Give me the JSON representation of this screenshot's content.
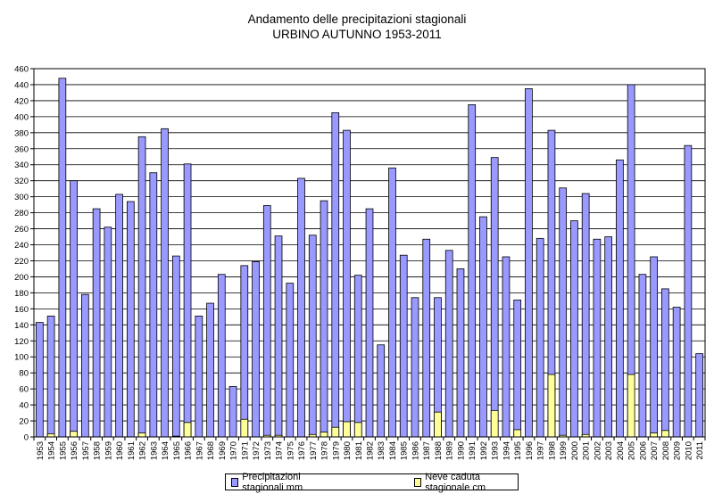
{
  "chart_data": {
    "type": "bar",
    "title": "Andamento delle precipitazioni stagionali",
    "subtitle": "URBINO AUTUNNO 1953-2011",
    "xlabel": "",
    "ylabel": "",
    "ylim": [
      0,
      460
    ],
    "yticks": [
      0,
      20,
      40,
      60,
      80,
      100,
      120,
      140,
      160,
      180,
      200,
      220,
      240,
      260,
      280,
      300,
      320,
      340,
      360,
      380,
      400,
      420,
      440,
      460
    ],
    "grid": true,
    "legend_position": "bottom",
    "categories": [
      "1953",
      "1954",
      "1955",
      "1956",
      "1957",
      "1958",
      "1959",
      "1960",
      "1961",
      "1962",
      "1963",
      "1964",
      "1965",
      "1966",
      "1967",
      "1968",
      "1969",
      "1970",
      "1971",
      "1972",
      "1973",
      "1974",
      "1975",
      "1976",
      "1977",
      "1978",
      "1979",
      "1980",
      "1981",
      "1982",
      "1983",
      "1984",
      "1985",
      "1986",
      "1987",
      "1988",
      "1989",
      "1990",
      "1991",
      "1992",
      "1993",
      "1994",
      "1995",
      "1996",
      "1997",
      "1998",
      "1999",
      "2000",
      "2001",
      "2002",
      "2003",
      "2004",
      "2005",
      "2006",
      "2007",
      "2008",
      "2009",
      "2010",
      "2011"
    ],
    "series": [
      {
        "name": "Precipitazioni stagionali mm",
        "color": "#9999ff",
        "values": [
          143,
          151,
          448,
          320,
          178,
          285,
          262,
          303,
          294,
          375,
          330,
          385,
          226,
          341,
          151,
          167,
          203,
          63,
          214,
          219,
          289,
          251,
          192,
          323,
          252,
          295,
          405,
          383,
          202,
          285,
          115,
          336,
          227,
          174,
          247,
          174,
          233,
          210,
          415,
          275,
          349,
          225,
          171,
          435,
          248,
          383,
          311,
          270,
          304,
          247,
          250,
          346,
          440,
          203,
          225,
          185,
          162,
          364,
          104
        ]
      },
      {
        "name": "Neve caduta stagionale cm",
        "color": "#ffff99",
        "values": [
          0,
          4,
          0,
          7,
          0,
          0,
          0,
          0,
          0,
          5,
          0,
          0,
          1,
          18,
          0,
          0,
          0,
          0,
          22,
          0,
          2,
          2,
          0,
          0,
          3,
          6,
          12,
          19,
          18,
          0,
          0,
          0,
          0,
          0,
          0,
          31,
          0,
          0,
          0,
          0,
          33,
          0,
          9,
          0,
          0,
          78,
          2,
          0,
          3,
          0,
          0,
          0,
          78,
          0,
          5,
          8,
          0,
          0,
          0
        ]
      }
    ]
  }
}
